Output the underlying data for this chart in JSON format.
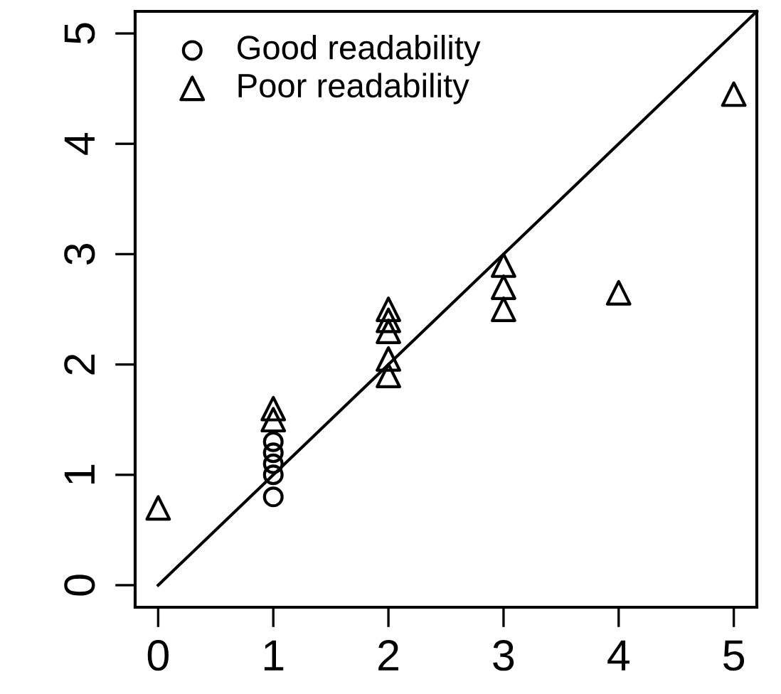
{
  "chart_data": {
    "type": "scatter",
    "xlim": [
      -0.2,
      5.2
    ],
    "ylim": [
      -0.2,
      5.2
    ],
    "xticks": [
      0,
      1,
      2,
      3,
      4,
      5
    ],
    "yticks": [
      0,
      1,
      2,
      3,
      4,
      5
    ],
    "grid": false,
    "legend": "top left",
    "series": [
      {
        "name": "Good readability",
        "color": "#000000",
        "marker": "circle",
        "x": [
          1,
          1,
          1,
          1,
          1
        ],
        "values": [
          0.8,
          1.0,
          1.1,
          1.2,
          1.3
        ]
      },
      {
        "name": "Poor readability",
        "color": "#000000",
        "marker": "triangle",
        "x": [
          0,
          1,
          1,
          2,
          2,
          2,
          2,
          2,
          3,
          3,
          3,
          4,
          5
        ],
        "values": [
          0.7,
          1.5,
          1.6,
          1.9,
          2.05,
          2.3,
          2.4,
          2.5,
          2.5,
          2.7,
          2.9,
          2.65,
          4.45
        ]
      },
      {
        "type": "line",
        "color": "#000000",
        "marker": "none",
        "x": [
          0,
          5.2
        ],
        "values": [
          0,
          5.2
        ]
      }
    ]
  }
}
